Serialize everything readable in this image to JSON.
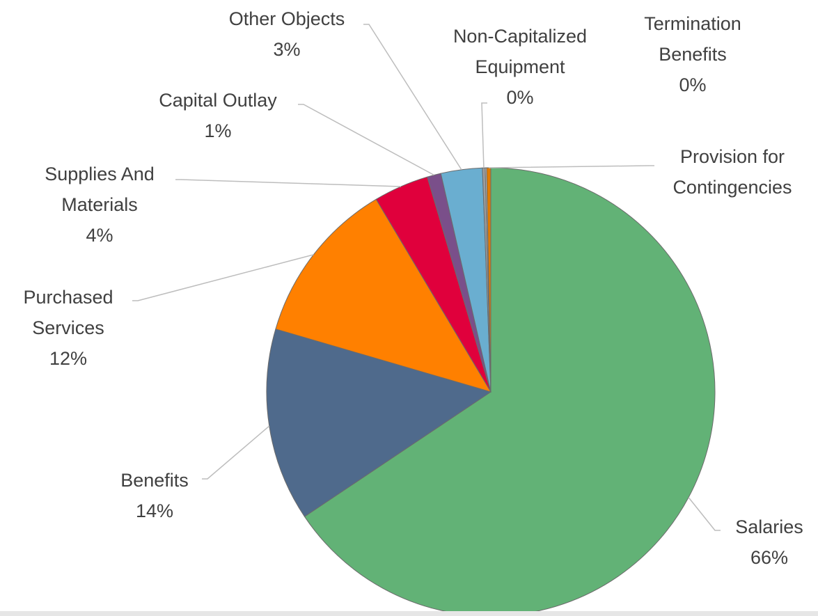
{
  "chart_data": {
    "type": "pie",
    "categories": [
      "Salaries",
      "Benefits",
      "Purchased Services",
      "Supplies And Materials",
      "Capital Outlay",
      "Other Objects",
      "Non-Capitalized Equipment",
      "Termination Benefits",
      "Provision for Contingencies"
    ],
    "values": [
      66,
      14,
      12,
      4,
      1,
      3,
      0.2,
      0.1,
      0.3
    ],
    "value_labels": [
      "66%",
      "14%",
      "12%",
      "4%",
      "1%",
      "3%",
      "0%",
      "0%",
      null
    ],
    "colors": [
      "#62b276",
      "#4f6a8c",
      "#ff8000",
      "#e0003c",
      "#7a4f8a",
      "#6aaed0",
      "#9e9e9e",
      "#c8c8c8",
      "#e07b00"
    ]
  }
}
